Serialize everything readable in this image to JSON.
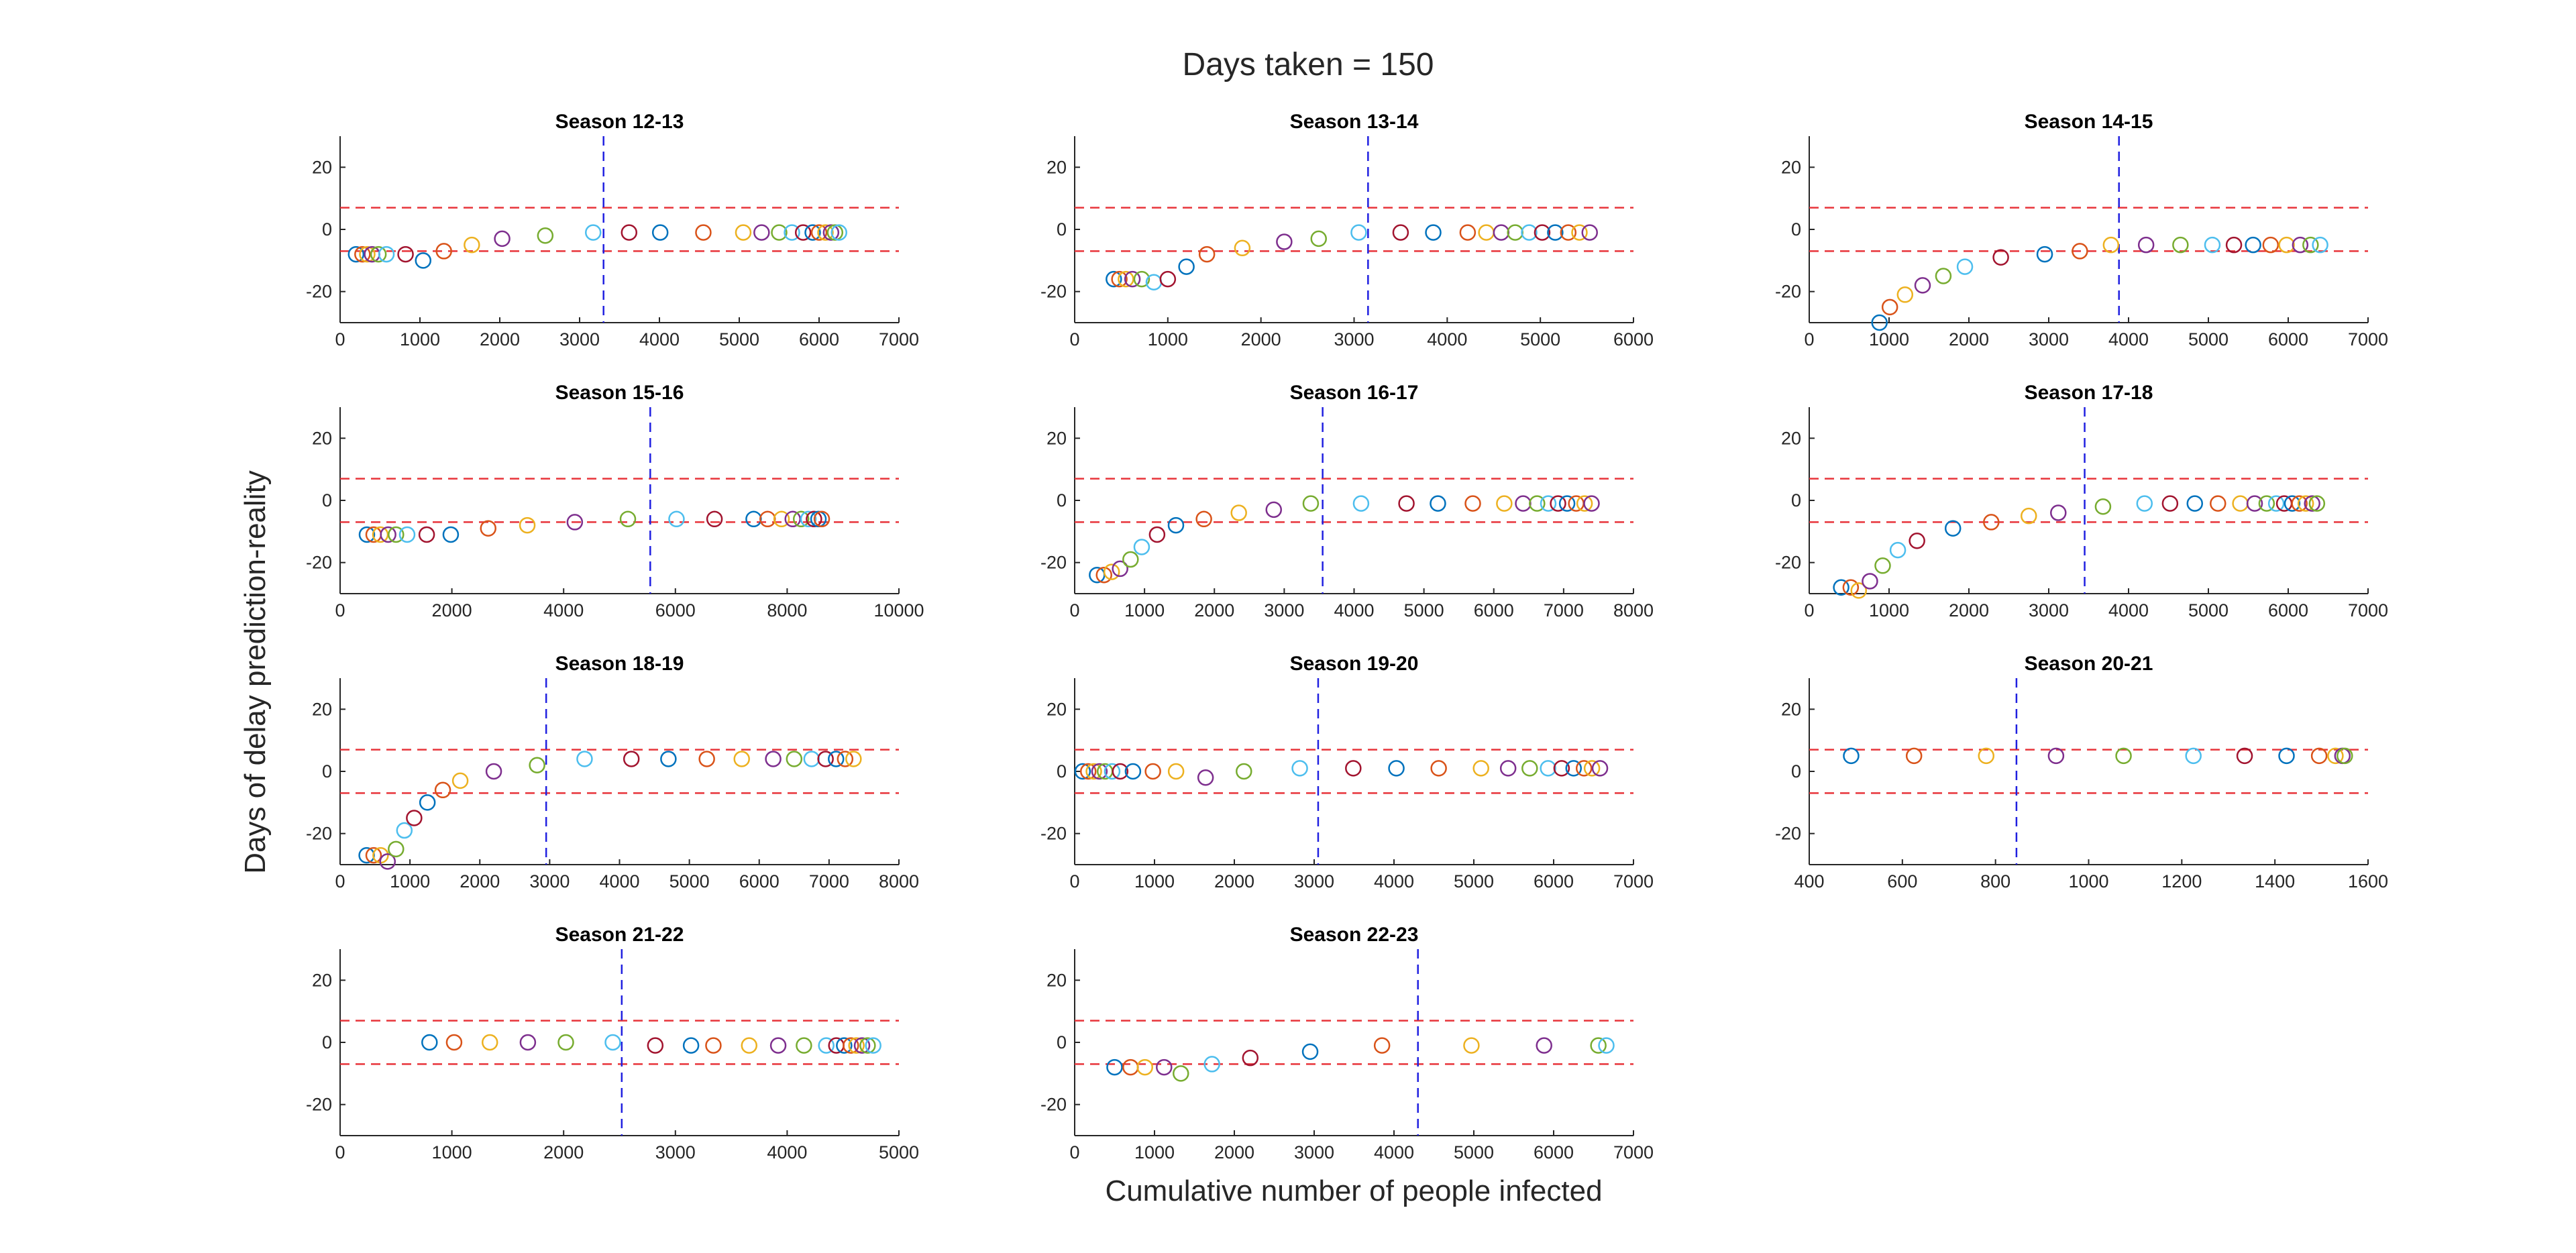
{
  "figure": {
    "title": "Days taken = 150",
    "xlabel": "Cumulative number of people infected",
    "ylabel": "Days of delay prediction-reality"
  },
  "style": {
    "threshold_color": "#e8343a",
    "marker_line_color": "#2020e0",
    "axis_color": "#262626",
    "marker_colors": [
      "#0072BD",
      "#D95319",
      "#EDB120",
      "#7E2F8E",
      "#77AC30",
      "#4DBEEE",
      "#A2142F"
    ]
  },
  "chart_data": [
    {
      "type": "scatter",
      "title": "Season 12-13",
      "xlim": [
        0,
        7000
      ],
      "ylim": [
        -30,
        30
      ],
      "xticks": [
        0,
        1000,
        2000,
        3000,
        4000,
        5000,
        6000,
        7000
      ],
      "yticks": [
        -20,
        0,
        20
      ],
      "thresholds": [
        7,
        -7
      ],
      "marker_x": 3300,
      "x": [
        200,
        280,
        340,
        400,
        480,
        580,
        820,
        1040,
        1300,
        1650,
        2030,
        2570,
        3170,
        3620,
        4010,
        4550,
        5050,
        5280,
        5500,
        5660,
        5800,
        5920,
        6000,
        6080,
        6150,
        6200,
        6250
      ],
      "y": [
        -8,
        -8,
        -8,
        -8,
        -8,
        -8,
        -8,
        -10,
        -7,
        -5,
        -3,
        -2,
        -1,
        -1,
        -1,
        -1,
        -1,
        -1,
        -1,
        -1,
        -1,
        -1,
        -1,
        -1,
        -1,
        -1,
        -1
      ]
    },
    {
      "type": "scatter",
      "title": "Season 13-14",
      "xlim": [
        0,
        6000
      ],
      "ylim": [
        -30,
        30
      ],
      "xticks": [
        0,
        1000,
        2000,
        3000,
        4000,
        5000,
        6000
      ],
      "yticks": [
        -20,
        0,
        20
      ],
      "thresholds": [
        7,
        -7
      ],
      "marker_x": 3150,
      "x": [
        420,
        480,
        550,
        620,
        720,
        850,
        1000,
        1200,
        1420,
        1800,
        2250,
        2620,
        3050,
        3500,
        3850,
        4220,
        4420,
        4580,
        4730,
        4880,
        5020,
        5160,
        5300,
        5420,
        5530
      ],
      "y": [
        -16,
        -16,
        -16,
        -16,
        -16,
        -17,
        -16,
        -12,
        -8,
        -6,
        -4,
        -3,
        -1,
        -1,
        -1,
        -1,
        -1,
        -1,
        -1,
        -1,
        -1,
        -1,
        -1,
        -1,
        -1
      ]
    },
    {
      "type": "scatter",
      "title": "Season 14-15",
      "xlim": [
        0,
        7000
      ],
      "ylim": [
        -30,
        30
      ],
      "xticks": [
        0,
        1000,
        2000,
        3000,
        4000,
        5000,
        6000,
        7000
      ],
      "yticks": [
        -20,
        0,
        20
      ],
      "thresholds": [
        7,
        -7
      ],
      "marker_x": 3880,
      "x": [
        880,
        1010,
        1200,
        1420,
        1680,
        1950,
        2400,
        2950,
        3390,
        3780,
        4220,
        4650,
        5050,
        5320,
        5560,
        5780,
        5980,
        6150,
        6280,
        6400
      ],
      "y": [
        -30,
        -25,
        -21,
        -18,
        -15,
        -12,
        -9,
        -8,
        -7,
        -5,
        -5,
        -5,
        -5,
        -5,
        -5,
        -5,
        -5,
        -5,
        -5,
        -5
      ]
    },
    {
      "type": "scatter",
      "title": "Season 15-16",
      "xlim": [
        0,
        10000
      ],
      "ylim": [
        -30,
        30
      ],
      "xticks": [
        0,
        2000,
        4000,
        6000,
        8000,
        10000
      ],
      "yticks": [
        -20,
        0,
        20
      ],
      "thresholds": [
        7,
        -7
      ],
      "marker_x": 5550,
      "x": [
        480,
        600,
        720,
        860,
        1000,
        1200,
        1550,
        1980,
        2650,
        3350,
        4200,
        5150,
        6020,
        6700,
        7400,
        7650,
        7900,
        8100,
        8250,
        8380,
        8480,
        8560,
        8620
      ],
      "y": [
        -11,
        -11,
        -11,
        -11,
        -11,
        -11,
        -11,
        -11,
        -9,
        -8,
        -7,
        -6,
        -6,
        -6,
        -6,
        -6,
        -6,
        -6,
        -6,
        -6,
        -6,
        -6,
        -6
      ]
    },
    {
      "type": "scatter",
      "title": "Season 16-17",
      "xlim": [
        0,
        8000
      ],
      "ylim": [
        -30,
        30
      ],
      "xticks": [
        0,
        1000,
        2000,
        3000,
        4000,
        5000,
        6000,
        7000,
        8000
      ],
      "yticks": [
        -20,
        0,
        20
      ],
      "thresholds": [
        7,
        -7
      ],
      "marker_x": 3550,
      "x": [
        320,
        420,
        530,
        650,
        800,
        960,
        1180,
        1450,
        1850,
        2350,
        2850,
        3380,
        4100,
        4750,
        5200,
        5700,
        6150,
        6420,
        6620,
        6780,
        6920,
        7050,
        7180,
        7300,
        7400
      ],
      "y": [
        -24,
        -24,
        -23,
        -22,
        -19,
        -15,
        -11,
        -8,
        -6,
        -4,
        -3,
        -1,
        -1,
        -1,
        -1,
        -1,
        -1,
        -1,
        -1,
        -1,
        -1,
        -1,
        -1,
        -1,
        -1
      ]
    },
    {
      "type": "scatter",
      "title": "Season 17-18",
      "xlim": [
        0,
        7000
      ],
      "ylim": [
        -30,
        30
      ],
      "xticks": [
        0,
        1000,
        2000,
        3000,
        4000,
        5000,
        6000,
        7000
      ],
      "yticks": [
        -20,
        0,
        20
      ],
      "thresholds": [
        7,
        -7
      ],
      "marker_x": 3450,
      "x": [
        400,
        520,
        620,
        760,
        920,
        1110,
        1350,
        1800,
        2280,
        2750,
        3120,
        3680,
        4200,
        4520,
        4830,
        5120,
        5400,
        5580,
        5730,
        5850,
        5950,
        6050,
        6140,
        6220,
        6300,
        6360
      ],
      "y": [
        -28,
        -28,
        -29,
        -26,
        -21,
        -16,
        -13,
        -9,
        -7,
        -5,
        -4,
        -2,
        -1,
        -1,
        -1,
        -1,
        -1,
        -1,
        -1,
        -1,
        -1,
        -1,
        -1,
        -1,
        -1,
        -1
      ]
    },
    {
      "type": "scatter",
      "title": "Season 18-19",
      "xlim": [
        0,
        8000
      ],
      "ylim": [
        -30,
        30
      ],
      "xticks": [
        0,
        1000,
        2000,
        3000,
        4000,
        5000,
        6000,
        7000,
        8000
      ],
      "yticks": [
        -20,
        0,
        20
      ],
      "thresholds": [
        7,
        -7
      ],
      "marker_x": 2950,
      "x": [
        380,
        480,
        580,
        680,
        800,
        920,
        1060,
        1250,
        1470,
        1720,
        2200,
        2820,
        3500,
        4170,
        4700,
        5250,
        5750,
        6200,
        6500,
        6750,
        6950,
        7100,
        7230,
        7350
      ],
      "y": [
        -27,
        -27,
        -27,
        -29,
        -25,
        -19,
        -15,
        -10,
        -6,
        -3,
        0,
        2,
        4,
        4,
        4,
        4,
        4,
        4,
        4,
        4,
        4,
        4,
        4,
        4
      ],
      "y_note_fix": []
    },
    {
      "type": "scatter",
      "title": "Season 19-20",
      "xlim": [
        0,
        7000
      ],
      "ylim": [
        -30,
        30
      ],
      "xticks": [
        0,
        1000,
        2000,
        3000,
        4000,
        5000,
        6000,
        7000
      ],
      "yticks": [
        -20,
        0,
        20
      ],
      "thresholds": [
        7,
        -7
      ],
      "marker_x": 3050,
      "x": [
        100,
        170,
        240,
        310,
        380,
        470,
        570,
        730,
        980,
        1270,
        1640,
        2120,
        2820,
        3490,
        4030,
        4560,
        5090,
        5430,
        5700,
        5930,
        6100,
        6250,
        6380,
        6480,
        6580
      ],
      "y": [
        0,
        0,
        0,
        0,
        0,
        0,
        0,
        0,
        0,
        0,
        -2,
        0,
        1,
        1,
        1,
        1,
        1,
        1,
        1,
        1,
        1,
        1,
        1,
        1,
        1
      ]
    },
    {
      "type": "scatter",
      "title": "Season 20-21",
      "xlim": [
        400,
        1600
      ],
      "ylim": [
        -30,
        30
      ],
      "xticks": [
        400,
        600,
        800,
        1000,
        1200,
        1400,
        1600
      ],
      "yticks": [
        -20,
        0,
        20
      ],
      "thresholds": [
        7,
        -7
      ],
      "marker_x": 845,
      "x": [
        490,
        625,
        780,
        930,
        1075,
        1225,
        1335,
        1425,
        1495,
        1530,
        1545,
        1550
      ],
      "y": [
        5,
        5,
        5,
        5,
        5,
        5,
        5,
        5,
        5,
        5,
        5,
        5
      ]
    },
    {
      "type": "scatter",
      "title": "Season 21-22",
      "xlim": [
        0,
        5000
      ],
      "ylim": [
        -30,
        30
      ],
      "xticks": [
        0,
        1000,
        2000,
        3000,
        4000,
        5000
      ],
      "yticks": [
        -20,
        0,
        20
      ],
      "thresholds": [
        7,
        -7
      ],
      "marker_x": 2520,
      "x": [
        800,
        1020,
        1340,
        1680,
        2020,
        2440,
        2820,
        3140,
        3340,
        3660,
        3920,
        4150,
        4350,
        4440,
        4510,
        4570,
        4620,
        4670,
        4720,
        4770
      ],
      "y": [
        0,
        0,
        0,
        0,
        0,
        0,
        -1,
        -1,
        -1,
        -1,
        -1,
        -1,
        -1,
        -1,
        -1,
        -1,
        -1,
        -1,
        -1,
        -1
      ]
    },
    {
      "type": "scatter",
      "title": "Season 22-23",
      "xlim": [
        0,
        7000
      ],
      "ylim": [
        -30,
        30
      ],
      "xticks": [
        0,
        1000,
        2000,
        3000,
        4000,
        5000,
        6000,
        7000
      ],
      "yticks": [
        -20,
        0,
        20
      ],
      "thresholds": [
        7,
        -7
      ],
      "marker_x": 4300,
      "x": [
        500,
        700,
        880,
        1120,
        1330,
        1720,
        2200,
        2950,
        3850,
        4970,
        5880,
        6560,
        6660
      ],
      "y": [
        -8,
        -8,
        -8,
        -8,
        -10,
        -7,
        -5,
        -3,
        -1,
        -1,
        -1,
        -1,
        -1
      ]
    }
  ]
}
